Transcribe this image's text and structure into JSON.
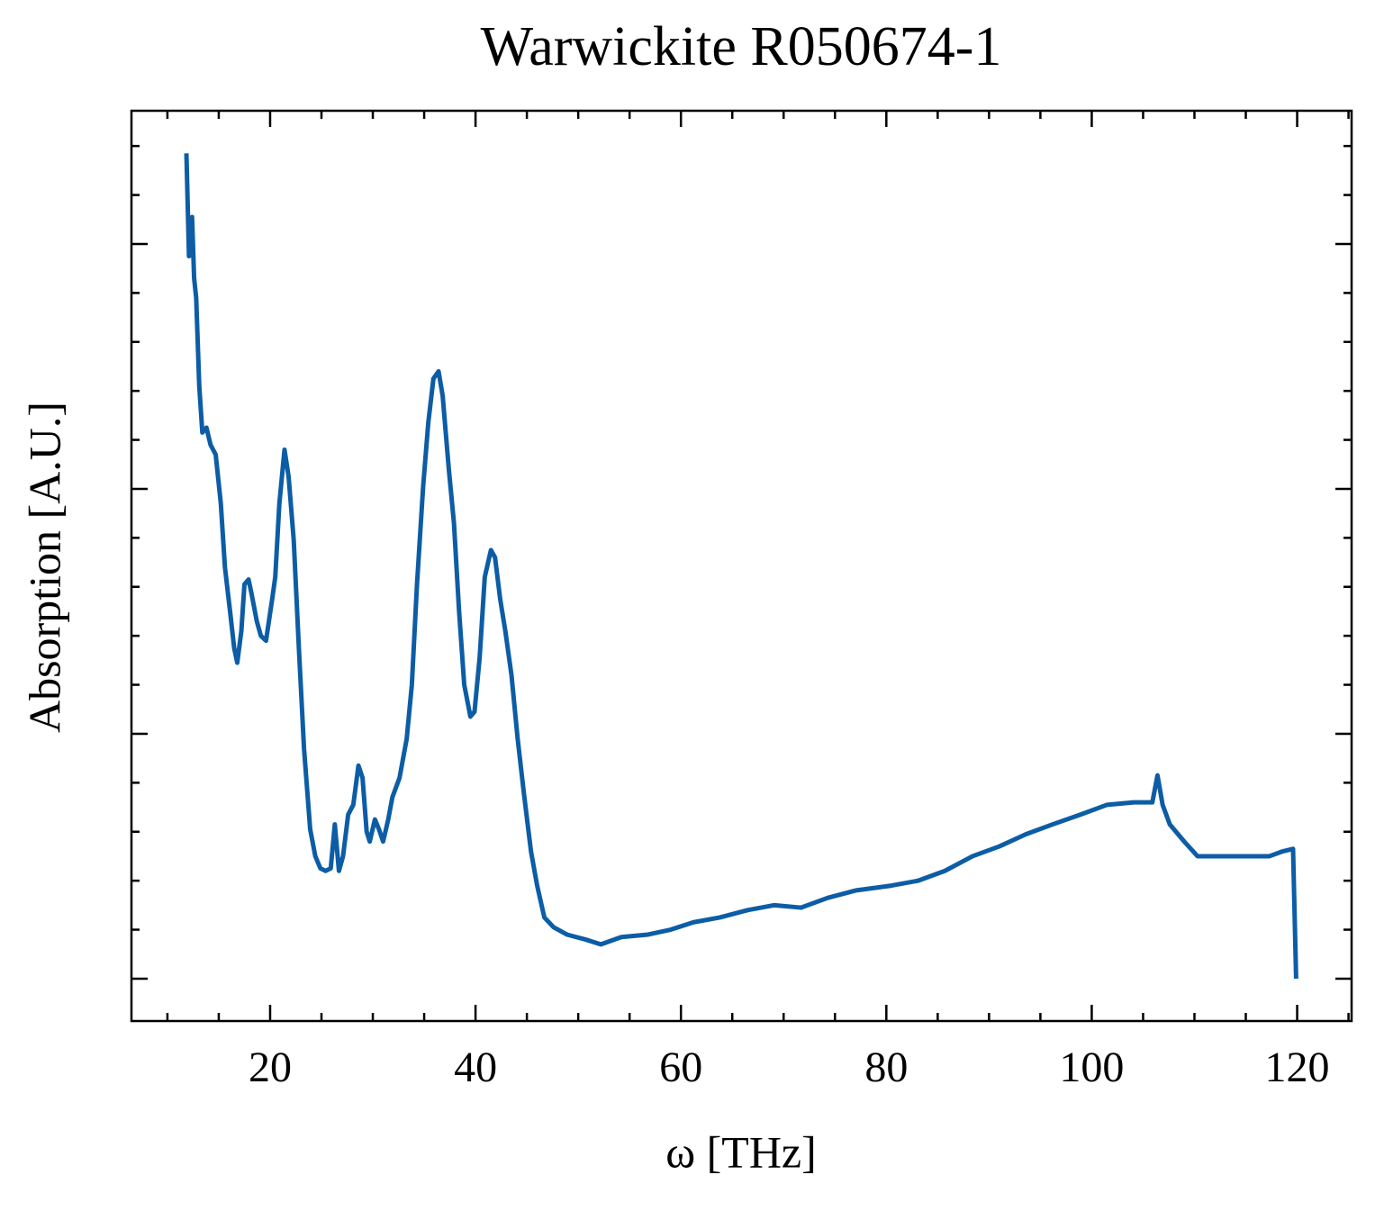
{
  "chart_data": {
    "type": "line",
    "title": "Warwickite R050674-1",
    "x_label": "ω [THz]",
    "y_label": "Absorption [A.U.]",
    "xlim": [
      6.5,
      125.3
    ],
    "ylim": [
      -0.173,
      3.544
    ],
    "xticks": [
      20,
      40,
      60,
      80,
      100,
      120
    ],
    "yticks": [
      0,
      1,
      2,
      3
    ],
    "xminorticks": [
      10,
      15,
      25,
      30,
      35,
      45,
      50,
      55,
      65,
      70,
      75,
      85,
      90,
      95,
      105,
      110,
      115,
      125
    ],
    "yminorticks": [
      0.2,
      0.4,
      0.6,
      0.8,
      1.2,
      1.4,
      1.6,
      1.8,
      2.2,
      2.4,
      2.6,
      2.8,
      3.2,
      3.4
    ],
    "ytick_labels": false,
    "mirror_ticks": true,
    "tick_direction": "in",
    "series": [
      {
        "color": "#0c5da5",
        "x": [
          11.85,
          12.1,
          12.4,
          12.6,
          12.8,
          13.1,
          13.4,
          13.8,
          14.2,
          14.7,
          15.2,
          15.6,
          16.1,
          16.5,
          16.8,
          17.2,
          17.5,
          17.9,
          18.2,
          18.7,
          19.1,
          19.6,
          20.2,
          20.5,
          20.9,
          21.4,
          21.8,
          22.3,
          22.8,
          23.3,
          23.9,
          24.4,
          24.9,
          25.4,
          25.9,
          26.3,
          26.7,
          27.1,
          27.6,
          28.1,
          28.6,
          29.0,
          29.4,
          29.7,
          30.2,
          30.6,
          31.0,
          31.5,
          31.9,
          32.6,
          33.3,
          33.8,
          34.3,
          34.9,
          35.4,
          35.9,
          36.4,
          36.8,
          37.4,
          37.9,
          38.4,
          38.9,
          39.5,
          39.9,
          40.4,
          40.9,
          41.5,
          41.9,
          42.4,
          42.9,
          43.5,
          44.1,
          44.7,
          45.4,
          46.0,
          46.7,
          47.6,
          48.9,
          50.7,
          52.2,
          54.2,
          56.8,
          59.0,
          61.2,
          63.8,
          66.5,
          69.1,
          71.7,
          74.3,
          77.0,
          80.5,
          83.1,
          85.7,
          88.4,
          91.0,
          93.6,
          96.2,
          98.9,
          101.5,
          104.1,
          105.9,
          106.4,
          106.9,
          107.6,
          109.0,
          110.3,
          112.0,
          114.7,
          117.3,
          118.6,
          119.6,
          119.9
        ],
        "values": [
          3.37,
          2.95,
          3.11,
          2.86,
          2.78,
          2.42,
          2.23,
          2.25,
          2.18,
          2.14,
          1.94,
          1.68,
          1.5,
          1.35,
          1.29,
          1.42,
          1.61,
          1.63,
          1.57,
          1.46,
          1.4,
          1.38,
          1.55,
          1.64,
          1.94,
          2.16,
          2.05,
          1.79,
          1.35,
          0.94,
          0.61,
          0.5,
          0.45,
          0.44,
          0.45,
          0.63,
          0.44,
          0.5,
          0.67,
          0.71,
          0.87,
          0.82,
          0.6,
          0.56,
          0.65,
          0.61,
          0.56,
          0.65,
          0.74,
          0.82,
          0.98,
          1.2,
          1.61,
          2.01,
          2.27,
          2.45,
          2.48,
          2.38,
          2.08,
          1.86,
          1.5,
          1.2,
          1.07,
          1.09,
          1.31,
          1.64,
          1.75,
          1.72,
          1.55,
          1.42,
          1.24,
          0.98,
          0.76,
          0.52,
          0.38,
          0.25,
          0.21,
          0.18,
          0.16,
          0.14,
          0.17,
          0.18,
          0.2,
          0.23,
          0.25,
          0.28,
          0.3,
          0.29,
          0.33,
          0.36,
          0.38,
          0.4,
          0.44,
          0.5,
          0.54,
          0.59,
          0.63,
          0.67,
          0.71,
          0.72,
          0.72,
          0.83,
          0.71,
          0.63,
          0.56,
          0.5,
          0.5,
          0.5,
          0.5,
          0.52,
          0.53,
          0.0
        ]
      }
    ]
  }
}
